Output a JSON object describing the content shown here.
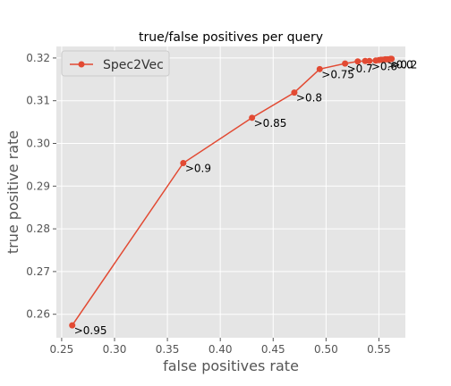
{
  "chart_data": {
    "type": "line",
    "title": "true/false positives per query",
    "xlabel": "false positives rate",
    "ylabel": "true positive rate",
    "xlim": [
      0.245,
      0.575
    ],
    "ylim": [
      0.2545,
      0.3227
    ],
    "xticks": [
      0.25,
      0.3,
      0.35,
      0.4,
      0.45,
      0.5,
      0.55
    ],
    "xtick_labels": [
      "0.25",
      "0.30",
      "0.35",
      "0.40",
      "0.45",
      "0.50",
      "0.55"
    ],
    "yticks": [
      0.26,
      0.27,
      0.28,
      0.29,
      0.3,
      0.31,
      0.32
    ],
    "ytick_labels": [
      "0.26",
      "0.27",
      "0.28",
      "0.29",
      "0.30",
      "0.31",
      "0.32"
    ],
    "grid": true,
    "legend_position": "top-left",
    "colors": {
      "series": "#E24A33",
      "plot_bg": "#E5E5E5",
      "grid": "#FFFFFF",
      "text": "#555555"
    },
    "series": [
      {
        "name": "Spec2Vec",
        "x": [
          0.26,
          0.365,
          0.43,
          0.47,
          0.494,
          0.518,
          0.53,
          0.537,
          0.541,
          0.547,
          0.55,
          0.552,
          0.554,
          0.556,
          0.558,
          0.56,
          0.561,
          0.562
        ],
        "y": [
          0.2574,
          0.2954,
          0.306,
          0.3119,
          0.3174,
          0.3187,
          0.3192,
          0.3193,
          0.3193,
          0.3194,
          0.3195,
          0.3196,
          0.3196,
          0.3197,
          0.3197,
          0.3197,
          0.3198,
          0.3198
        ]
      }
    ],
    "annotations": [
      {
        "text": ">0.95",
        "x": 0.26,
        "y": 0.2574
      },
      {
        "text": ">0.9",
        "x": 0.365,
        "y": 0.2954
      },
      {
        "text": ">0.85",
        "x": 0.43,
        "y": 0.306
      },
      {
        "text": ">0.8",
        "x": 0.47,
        "y": 0.3119
      },
      {
        "text": ">0.75",
        "x": 0.494,
        "y": 0.3174
      },
      {
        "text": ">0.7",
        "x": 0.518,
        "y": 0.3187
      },
      {
        "text": ">0.6",
        "x": 0.541,
        "y": 0.3193
      },
      {
        "text": ">0.0",
        "x": 0.556,
        "y": 0.3197
      },
      {
        "text": ">0.2",
        "x": 0.56,
        "y": 0.3197
      }
    ]
  }
}
